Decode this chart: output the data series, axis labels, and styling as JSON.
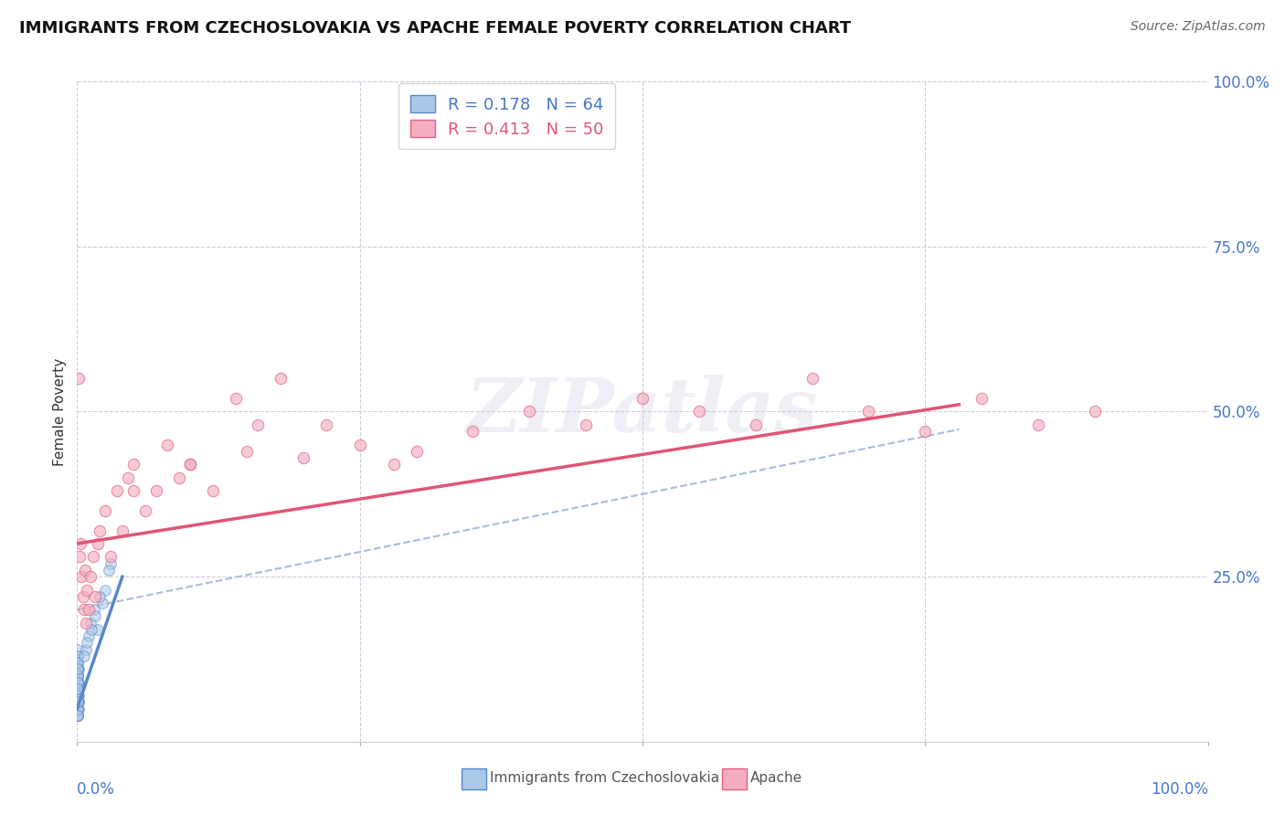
{
  "title": "IMMIGRANTS FROM CZECHOSLOVAKIA VS APACHE FEMALE POVERTY CORRELATION CHART",
  "source": "Source: ZipAtlas.com",
  "ylabel": "Female Poverty",
  "legend_label_blue": "Immigrants from Czechoslovakia",
  "legend_label_pink": "Apache",
  "r_blue": 0.178,
  "n_blue": 64,
  "r_pink": 0.413,
  "n_pink": 50,
  "blue_color": "#aac8e8",
  "pink_color": "#f4aec0",
  "blue_edge_color": "#5588cc",
  "pink_edge_color": "#e06080",
  "blue_line_color": "#5588cc",
  "pink_line_color": "#e05575",
  "dashed_line_color": "#aabbdd",
  "watermark_text": "ZIPatlas",
  "blue_scatter_x": [
    0.0002,
    0.0003,
    0.0003,
    0.0004,
    0.0004,
    0.0005,
    0.0005,
    0.0006,
    0.0006,
    0.0007,
    0.0008,
    0.0008,
    0.0009,
    0.001,
    0.001,
    0.001,
    0.001,
    0.0012,
    0.0013,
    0.0015,
    0.0002,
    0.0003,
    0.0004,
    0.0005,
    0.0003,
    0.0004,
    0.0005,
    0.0006,
    0.0007,
    0.0008,
    0.0002,
    0.0003,
    0.0002,
    0.0004,
    0.0003,
    0.0005,
    0.0004,
    0.0006,
    0.0005,
    0.0007,
    0.0003,
    0.0002,
    0.0004,
    0.0003,
    0.0005,
    0.0004,
    0.0006,
    0.0005,
    0.0003,
    0.0002,
    0.008,
    0.01,
    0.012,
    0.015,
    0.018,
    0.022,
    0.006,
    0.009,
    0.016,
    0.013,
    0.025,
    0.03,
    0.02,
    0.028
  ],
  "blue_scatter_y": [
    0.04,
    0.06,
    0.08,
    0.05,
    0.09,
    0.04,
    0.07,
    0.05,
    0.1,
    0.06,
    0.08,
    0.04,
    0.07,
    0.05,
    0.09,
    0.06,
    0.11,
    0.07,
    0.08,
    0.06,
    0.12,
    0.09,
    0.07,
    0.1,
    0.05,
    0.08,
    0.06,
    0.09,
    0.07,
    0.11,
    0.13,
    0.1,
    0.14,
    0.08,
    0.12,
    0.07,
    0.11,
    0.09,
    0.13,
    0.08,
    0.06,
    0.1,
    0.05,
    0.09,
    0.07,
    0.12,
    0.08,
    0.11,
    0.06,
    0.04,
    0.14,
    0.16,
    0.18,
    0.2,
    0.17,
    0.21,
    0.13,
    0.15,
    0.19,
    0.17,
    0.23,
    0.27,
    0.22,
    0.26
  ],
  "pink_scatter_x": [
    0.001,
    0.002,
    0.003,
    0.004,
    0.005,
    0.006,
    0.007,
    0.008,
    0.009,
    0.01,
    0.012,
    0.014,
    0.016,
    0.018,
    0.02,
    0.025,
    0.03,
    0.035,
    0.04,
    0.045,
    0.05,
    0.06,
    0.07,
    0.08,
    0.09,
    0.1,
    0.12,
    0.14,
    0.16,
    0.18,
    0.2,
    0.22,
    0.25,
    0.28,
    0.3,
    0.35,
    0.4,
    0.45,
    0.5,
    0.55,
    0.6,
    0.65,
    0.7,
    0.75,
    0.8,
    0.85,
    0.9,
    0.1,
    0.15,
    0.05
  ],
  "pink_scatter_y": [
    0.55,
    0.28,
    0.3,
    0.25,
    0.22,
    0.2,
    0.26,
    0.18,
    0.23,
    0.2,
    0.25,
    0.28,
    0.22,
    0.3,
    0.32,
    0.35,
    0.28,
    0.38,
    0.32,
    0.4,
    0.42,
    0.35,
    0.38,
    0.45,
    0.4,
    0.42,
    0.38,
    0.52,
    0.48,
    0.55,
    0.43,
    0.48,
    0.45,
    0.42,
    0.44,
    0.47,
    0.5,
    0.48,
    0.52,
    0.5,
    0.48,
    0.55,
    0.5,
    0.47,
    0.52,
    0.48,
    0.5,
    0.42,
    0.44,
    0.38
  ],
  "xlim": [
    0.0,
    1.0
  ],
  "ylim": [
    0.0,
    1.0
  ],
  "ytick_values": [
    0.0,
    0.25,
    0.5,
    0.75,
    1.0
  ],
  "ytick_labels": [
    "",
    "25.0%",
    "50.0%",
    "75.0%",
    "100.0%"
  ],
  "xtick_label_left": "0.0%",
  "xtick_label_right": "100.0%",
  "tick_label_color": "#4477cc",
  "grid_color": "#ccccdd",
  "background_color": "#ffffff",
  "pink_intercept": 0.3,
  "pink_slope": 0.27,
  "blue_intercept": 0.05,
  "blue_slope": 5.0,
  "dashed_intercept": 0.2,
  "dashed_slope": 0.35
}
